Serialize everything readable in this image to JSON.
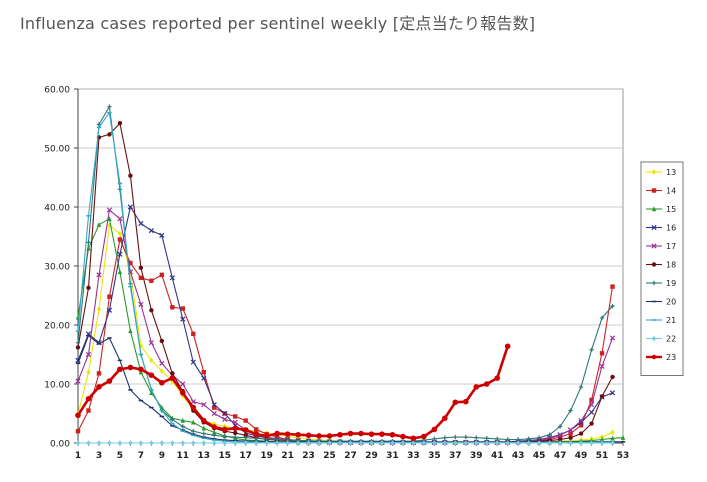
{
  "page": {
    "title": "Influenza cases reported per sentinel weekly [定点当たり報告数]"
  },
  "chart_data": {
    "type": "line",
    "ylim": [
      0,
      60
    ],
    "yticks": [
      "0.00",
      "10.00",
      "20.00",
      "30.00",
      "40.00",
      "50.00",
      "60.00"
    ],
    "xlim": [
      1,
      53
    ],
    "xticks": [
      "1",
      "3",
      "5",
      "7",
      "9",
      "11",
      "13",
      "15",
      "17",
      "19",
      "21",
      "23",
      "25",
      "27",
      "29",
      "31",
      "33",
      "35",
      "37",
      "39",
      "41",
      "43",
      "45",
      "47",
      "49",
      "51",
      "53"
    ],
    "grid": "horizontal",
    "legend_position": "right",
    "series": [
      {
        "name": "13",
        "color": "#e8e800",
        "marker": "diamond",
        "x": [
          1,
          2,
          3,
          4,
          5,
          6,
          7,
          8,
          9,
          10,
          11,
          12,
          13,
          14,
          15,
          16,
          17,
          18,
          19,
          20,
          21,
          22,
          23,
          24,
          25,
          26,
          27,
          28,
          29,
          30,
          31,
          32,
          33,
          34,
          35,
          36,
          37,
          38,
          39,
          40,
          41,
          42,
          43,
          44,
          45,
          46,
          47,
          48,
          49,
          50,
          51,
          52
        ],
        "values": [
          4.9,
          12.0,
          22.7,
          36.9,
          35.5,
          29.0,
          16.5,
          14.0,
          12.2,
          10.5,
          8.0,
          5.5,
          3.8,
          3.2,
          2.8,
          2.5,
          2.2,
          2.0,
          1.7,
          1.4,
          1.1,
          0.9,
          0.7,
          0.5,
          0.4,
          0.3,
          0.3,
          0.2,
          0.2,
          0.2,
          0.1,
          0.1,
          0.1,
          0.1,
          0.1,
          0.1,
          0.1,
          0.1,
          0.1,
          0.1,
          0.1,
          0.1,
          0.1,
          0.1,
          0.1,
          0.2,
          0.3,
          0.4,
          0.5,
          0.7,
          1.0,
          1.8
        ]
      },
      {
        "name": "14",
        "color": "#cc2222",
        "marker": "square",
        "x": [
          1,
          2,
          3,
          4,
          5,
          6,
          7,
          8,
          9,
          10,
          11,
          12,
          13,
          14,
          15,
          16,
          17,
          18,
          19,
          20,
          21,
          22,
          23,
          24,
          25,
          26,
          27,
          28,
          29,
          30,
          31,
          32,
          33,
          34,
          35,
          36,
          37,
          38,
          39,
          40,
          41,
          42,
          43,
          44,
          45,
          46,
          47,
          48,
          49,
          50,
          51,
          52
        ],
        "values": [
          2.0,
          5.5,
          11.8,
          24.8,
          34.5,
          30.5,
          28.0,
          27.5,
          28.5,
          23.0,
          22.8,
          18.5,
          12.0,
          6.0,
          5.0,
          4.5,
          3.8,
          2.3,
          1.5,
          1.0,
          0.6,
          0.4,
          0.3,
          0.2,
          0.2,
          0.2,
          0.1,
          0.1,
          0.1,
          0.1,
          0.1,
          0.1,
          0.1,
          0.1,
          0.1,
          0.1,
          0.1,
          0.1,
          0.1,
          0.1,
          0.1,
          0.2,
          0.2,
          0.3,
          0.4,
          0.6,
          1.0,
          1.6,
          3.0,
          7.3,
          15.2,
          26.5
        ]
      },
      {
        "name": "15",
        "color": "#2a9a2a",
        "marker": "triangle",
        "x": [
          1,
          2,
          3,
          4,
          5,
          6,
          7,
          8,
          9,
          10,
          11,
          12,
          13,
          14,
          15,
          16,
          17,
          18,
          19,
          20,
          21,
          22,
          23,
          24,
          25,
          26,
          27,
          28,
          29,
          30,
          31,
          32,
          33,
          34,
          35,
          36,
          37,
          38,
          39,
          40,
          41,
          42,
          43,
          44,
          45,
          46,
          47,
          48,
          49,
          50,
          51,
          52,
          53
        ],
        "values": [
          21.3,
          33.0,
          37.0,
          38.0,
          29.0,
          19.0,
          12.0,
          8.5,
          6.0,
          4.2,
          3.8,
          3.5,
          2.5,
          1.8,
          1.2,
          0.8,
          0.5,
          0.4,
          0.3,
          0.2,
          0.2,
          0.1,
          0.1,
          0.1,
          0.1,
          0.1,
          0.1,
          0.1,
          0.1,
          0.1,
          0.1,
          0.1,
          0.1,
          0.1,
          0.1,
          0.1,
          0.1,
          0.1,
          0.1,
          0.1,
          0.1,
          0.1,
          0.1,
          0.1,
          0.1,
          0.1,
          0.1,
          0.2,
          0.3,
          0.4,
          0.6,
          0.8,
          0.9
        ]
      },
      {
        "name": "16",
        "color": "#333388",
        "marker": "x",
        "x": [
          1,
          2,
          3,
          4,
          5,
          6,
          7,
          8,
          9,
          10,
          11,
          12,
          13,
          14,
          15,
          16,
          17,
          18,
          19,
          20,
          21,
          22,
          23,
          24,
          25,
          26,
          27,
          28,
          29,
          30,
          31,
          32,
          33,
          34,
          35,
          36,
          37,
          38,
          39,
          40,
          41,
          42,
          43,
          44,
          45,
          46,
          47,
          48,
          49,
          50,
          51,
          52
        ],
        "values": [
          14.0,
          18.5,
          17.0,
          22.5,
          32.0,
          40.0,
          37.2,
          36.0,
          35.2,
          28.0,
          21.0,
          13.7,
          11.0,
          6.5,
          5.0,
          3.0,
          1.7,
          1.2,
          0.9,
          0.7,
          0.6,
          0.4,
          0.3,
          0.2,
          0.2,
          0.2,
          0.1,
          0.1,
          0.1,
          0.1,
          0.1,
          0.1,
          0.1,
          0.1,
          0.1,
          0.1,
          0.1,
          0.1,
          0.1,
          0.1,
          0.1,
          0.2,
          0.3,
          0.4,
          0.6,
          0.9,
          1.4,
          2.2,
          3.5,
          5.2,
          7.8,
          8.5
        ]
      },
      {
        "name": "17",
        "color": "#993399",
        "marker": "x",
        "x": [
          1,
          2,
          3,
          4,
          5,
          6,
          7,
          8,
          9,
          10,
          11,
          12,
          13,
          14,
          15,
          16,
          17,
          18,
          19,
          20,
          21,
          22,
          23,
          24,
          25,
          26,
          27,
          28,
          29,
          30,
          31,
          32,
          33,
          34,
          35,
          36,
          37,
          38,
          39,
          40,
          41,
          42,
          43,
          44,
          45,
          46,
          47,
          48,
          49,
          50,
          51,
          52
        ],
        "values": [
          10.5,
          15.0,
          28.5,
          39.5,
          38.0,
          29.0,
          23.5,
          17.0,
          13.5,
          11.5,
          10.0,
          7.0,
          6.5,
          5.0,
          4.0,
          3.5,
          2.2,
          1.5,
          1.0,
          0.7,
          0.5,
          0.3,
          0.2,
          0.2,
          0.1,
          0.1,
          0.1,
          0.1,
          0.1,
          0.1,
          0.1,
          0.1,
          0.1,
          0.1,
          0.1,
          0.1,
          0.1,
          0.1,
          0.1,
          0.1,
          0.1,
          0.1,
          0.2,
          0.3,
          0.5,
          0.8,
          1.3,
          2.2,
          3.8,
          6.5,
          13.0,
          17.8
        ]
      },
      {
        "name": "18",
        "color": "#661111",
        "marker": "circle",
        "x": [
          1,
          2,
          3,
          4,
          5,
          6,
          7,
          8,
          9,
          10,
          11,
          12,
          13,
          14,
          15,
          16,
          17,
          18,
          19,
          20,
          21,
          22,
          23,
          24,
          25,
          26,
          27,
          28,
          29,
          30,
          31,
          32,
          33,
          34,
          35,
          36,
          37,
          38,
          39,
          40,
          41,
          42,
          43,
          44,
          45,
          46,
          47,
          48,
          49,
          50,
          51,
          52
        ],
        "values": [
          16.2,
          26.3,
          51.8,
          52.3,
          54.2,
          45.3,
          29.7,
          22.5,
          17.3,
          11.8,
          8.8,
          5.5,
          3.5,
          2.5,
          2.0,
          1.7,
          1.3,
          0.9,
          0.6,
          0.5,
          0.4,
          0.3,
          0.2,
          0.2,
          0.1,
          0.1,
          0.1,
          0.1,
          0.1,
          0.1,
          0.1,
          0.1,
          0.1,
          0.1,
          0.1,
          0.1,
          0.1,
          0.1,
          0.1,
          0.1,
          0.1,
          0.1,
          0.1,
          0.2,
          0.3,
          0.4,
          0.6,
          0.9,
          1.6,
          3.3,
          7.9,
          11.2
        ]
      },
      {
        "name": "19",
        "color": "#337777",
        "marker": "plus",
        "x": [
          1,
          2,
          3,
          4,
          5,
          6,
          7,
          8,
          9,
          10,
          11,
          12,
          13,
          14,
          15,
          16,
          17,
          18,
          19,
          20,
          21,
          22,
          23,
          24,
          25,
          26,
          27,
          28,
          29,
          30,
          31,
          32,
          33,
          34,
          35,
          36,
          37,
          38,
          39,
          40,
          41,
          42,
          43,
          44,
          45,
          46,
          47,
          48,
          49,
          50,
          51,
          52
        ],
        "values": [
          17.0,
          34.0,
          54.0,
          57.0,
          43.0,
          27.0,
          15.0,
          9.0,
          5.5,
          4.0,
          2.8,
          2.0,
          1.6,
          1.3,
          1.1,
          1.0,
          0.9,
          0.8,
          0.7,
          0.6,
          0.5,
          0.4,
          0.4,
          0.3,
          0.3,
          0.3,
          0.3,
          0.3,
          0.3,
          0.3,
          0.3,
          0.3,
          0.3,
          0.5,
          0.7,
          0.9,
          1.0,
          1.0,
          0.9,
          0.8,
          0.7,
          0.6,
          0.6,
          0.7,
          0.9,
          1.4,
          2.8,
          5.5,
          9.5,
          15.8,
          21.2,
          23.2
        ]
      },
      {
        "name": "20",
        "color": "#223366",
        "marker": "dash",
        "x": [
          1,
          2,
          3,
          4,
          5,
          6,
          7,
          8,
          9,
          10,
          11,
          12,
          13,
          14,
          15,
          16,
          17,
          18,
          19,
          20,
          21,
          22,
          23,
          24,
          25,
          26,
          27,
          28,
          29,
          30,
          31,
          32,
          33,
          34,
          35,
          36,
          37,
          38,
          39,
          40,
          41,
          42,
          43,
          44,
          45,
          46,
          47,
          48,
          49,
          50,
          51,
          52,
          53
        ],
        "values": [
          13.5,
          18.2,
          16.8,
          17.8,
          14.0,
          9.0,
          7.2,
          6.0,
          4.5,
          2.9,
          2.2,
          1.5,
          1.0,
          0.7,
          0.5,
          0.4,
          0.3,
          0.3,
          0.2,
          0.2,
          0.2,
          0.2,
          0.2,
          0.2,
          0.2,
          0.2,
          0.2,
          0.2,
          0.2,
          0.2,
          0.2,
          0.2,
          0.2,
          0.2,
          0.2,
          0.2,
          0.2,
          0.2,
          0.2,
          0.2,
          0.2,
          0.2,
          0.2,
          0.2,
          0.2,
          0.2,
          0.2,
          0.2,
          0.2,
          0.2,
          0.2,
          0.2,
          0.2
        ]
      },
      {
        "name": "21",
        "color": "#33aacc",
        "marker": "dash",
        "x": [
          1,
          2,
          3,
          4,
          5,
          6,
          7,
          8,
          9,
          10,
          11,
          12,
          13,
          14,
          15,
          16,
          17,
          18,
          19,
          20,
          21,
          22,
          23,
          24,
          25,
          26,
          27,
          28,
          29,
          30,
          31,
          32,
          33,
          34,
          35,
          36,
          37,
          38,
          39,
          40,
          41,
          42,
          43,
          44,
          45,
          46,
          47,
          48,
          49,
          50,
          51,
          52
        ],
        "values": [
          19.0,
          38.5,
          53.5,
          56.0,
          44.0,
          26.5,
          15.0,
          9.0,
          5.5,
          3.3,
          2.0,
          1.3,
          0.8,
          0.5,
          0.3,
          0.2,
          0.2,
          0.1,
          0.1,
          0.1,
          0.1,
          0.1,
          0.1,
          0.1,
          0.1,
          0.1,
          0.1,
          0.1,
          0.1,
          0.1,
          0.1,
          0.1,
          0.1,
          0.1,
          0.1,
          0.1,
          0.1,
          0.1,
          0.1,
          0.1,
          0.1,
          0.1,
          0.1,
          0.1,
          0.1,
          0.1,
          0.1,
          0.1,
          0.1,
          0.1,
          0.1,
          0.1
        ]
      },
      {
        "name": "22",
        "color": "#77ccdd",
        "marker": "diamond",
        "x": [
          1,
          2,
          3,
          4,
          5,
          6,
          7,
          8,
          9,
          10,
          11,
          12,
          13,
          14,
          15,
          16,
          17,
          18,
          19,
          20,
          21,
          22,
          23,
          24,
          25,
          26,
          27,
          28,
          29,
          30,
          31,
          32,
          33,
          34,
          35,
          36,
          37,
          38,
          39,
          40,
          41,
          42,
          43,
          44,
          45,
          46,
          47,
          48,
          49,
          50,
          51,
          52
        ],
        "values": [
          0,
          0,
          0,
          0,
          0,
          0,
          0,
          0,
          0,
          0,
          0,
          0,
          0,
          0,
          0,
          0,
          0,
          0,
          0,
          0,
          0,
          0,
          0,
          0,
          0,
          0,
          0,
          0,
          0,
          0,
          0,
          0,
          0,
          0,
          0,
          0,
          0,
          0,
          0,
          0,
          0,
          0,
          0,
          0,
          0,
          0,
          0,
          0,
          0,
          0,
          0,
          0
        ]
      },
      {
        "name": "23",
        "color": "#cc0000",
        "marker": "circle",
        "bold": true,
        "x": [
          1,
          2,
          3,
          4,
          5,
          6,
          7,
          8,
          9,
          10,
          11,
          12,
          13,
          14,
          15,
          16,
          17,
          18,
          19,
          20,
          21,
          22,
          23,
          24,
          25,
          26,
          27,
          28,
          29,
          30,
          31,
          32,
          33,
          34,
          35,
          36,
          37,
          38,
          39,
          40,
          41,
          42
        ],
        "values": [
          4.7,
          7.5,
          9.5,
          10.5,
          12.5,
          12.8,
          12.5,
          11.5,
          10.2,
          11.0,
          8.5,
          6.0,
          3.8,
          2.7,
          2.3,
          2.5,
          2.2,
          1.5,
          1.2,
          1.6,
          1.5,
          1.4,
          1.3,
          1.2,
          1.2,
          1.4,
          1.6,
          1.6,
          1.5,
          1.5,
          1.4,
          1.1,
          0.8,
          1.1,
          2.3,
          4.2,
          6.9,
          7.0,
          9.5,
          10.0,
          11.0,
          16.4
        ]
      }
    ]
  }
}
